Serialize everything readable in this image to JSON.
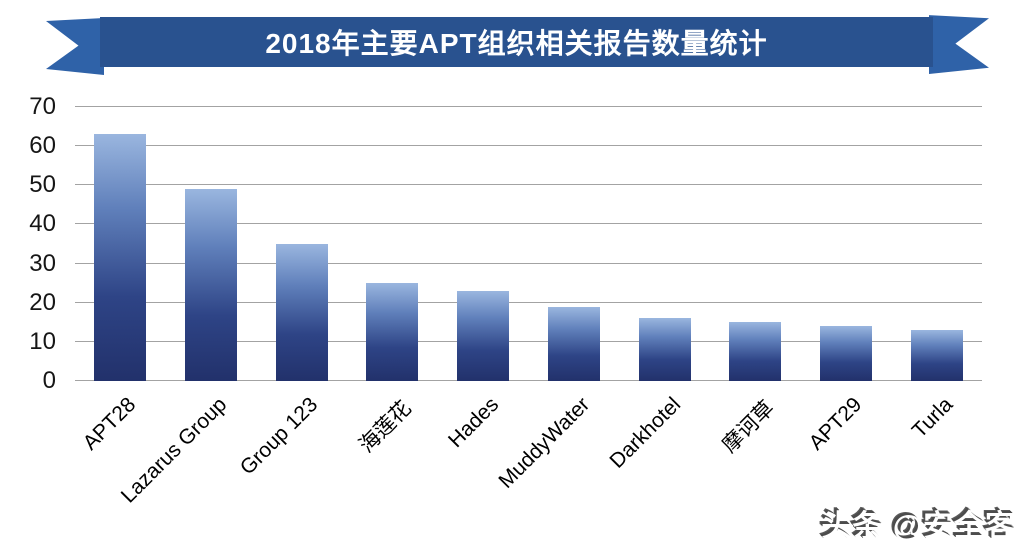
{
  "banner": {
    "title": "2018年主要APT组织相关报告数量统计",
    "body_color": "#29528f",
    "tail_color": "#2f62a8"
  },
  "watermark": {
    "text": "头条 @安全客"
  },
  "chart_data": {
    "type": "bar",
    "title": "2018年主要APT组织相关报告数量统计",
    "categories": [
      "APT28",
      "Lazarus Group",
      "Group 123",
      "海莲花",
      "Hades",
      "MuddyWater",
      "Darkhotel",
      "摩诃草",
      "APT29",
      "Turla"
    ],
    "values": [
      63,
      49,
      35,
      25,
      23,
      19,
      16,
      15,
      14,
      13
    ],
    "xlabel": "",
    "ylabel": "",
    "ylim": [
      0,
      70
    ],
    "yticks": [
      0,
      10,
      20,
      30,
      40,
      50,
      60,
      70
    ],
    "grid": true,
    "legend": "none",
    "bar_color_top": "#9ab6df",
    "bar_color_bottom": "#22316b",
    "grid_color": "#a3a3a3"
  }
}
